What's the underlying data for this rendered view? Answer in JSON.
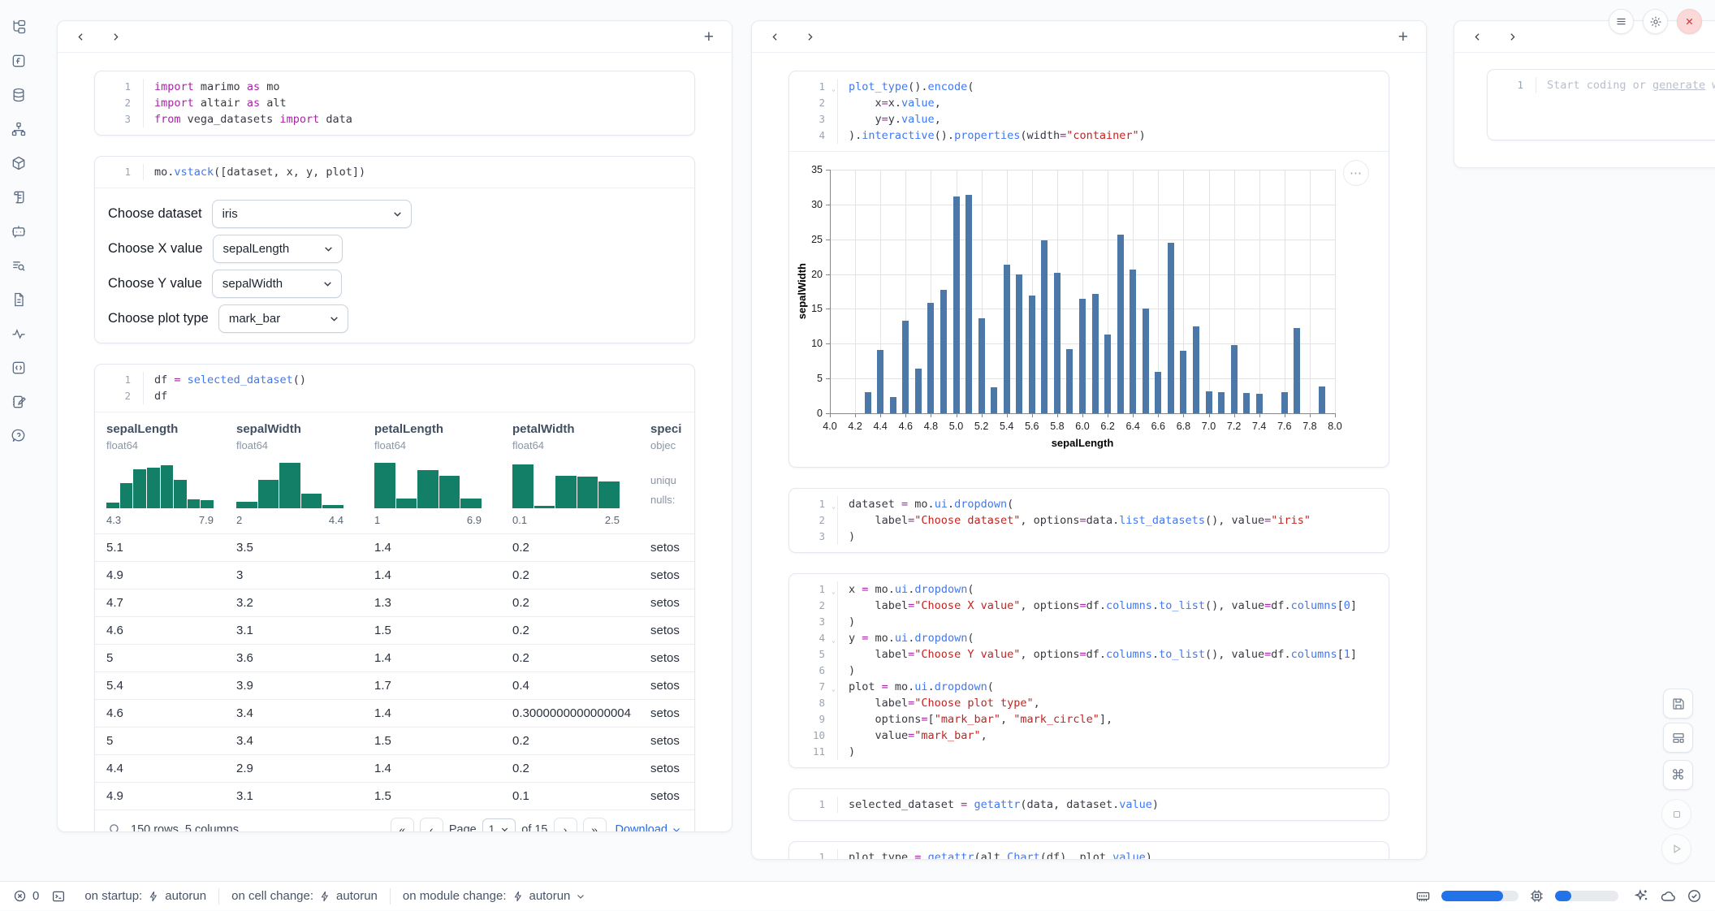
{
  "colors": {
    "bar": "#4c78a8",
    "histogram": "#137f67",
    "progress": "#2272e8",
    "link": "#2b6cde"
  },
  "column_header": {
    "add_label": "+"
  },
  "code_cells": {
    "imports": {
      "lines": [
        {
          "f": 0,
          "s": [
            [
              "k",
              "import"
            ],
            [
              "p",
              " marimo "
            ],
            [
              "k",
              "as"
            ],
            [
              "p",
              " mo"
            ]
          ]
        },
        {
          "f": 0,
          "s": [
            [
              "k",
              "import"
            ],
            [
              "p",
              " altair "
            ],
            [
              "k",
              "as"
            ],
            [
              "p",
              " alt"
            ]
          ]
        },
        {
          "f": 0,
          "s": [
            [
              "k",
              "from"
            ],
            [
              "p",
              " vega_datasets "
            ],
            [
              "k",
              "import"
            ],
            [
              "p",
              " data"
            ]
          ]
        }
      ]
    },
    "vstack": {
      "lines": [
        {
          "f": 0,
          "s": [
            [
              "p",
              "mo."
            ],
            [
              "f",
              "vstack"
            ],
            [
              "p",
              "([dataset, x, y, plot])"
            ]
          ]
        }
      ]
    },
    "df": {
      "lines": [
        {
          "f": 0,
          "s": [
            [
              "p",
              "df "
            ],
            [
              "o",
              "="
            ],
            [
              "p",
              " "
            ],
            [
              "f",
              "selected_dataset"
            ],
            [
              "p",
              "()"
            ]
          ]
        },
        {
          "f": 0,
          "s": [
            [
              "p",
              "df"
            ]
          ]
        }
      ]
    },
    "plot_encode": {
      "lines": [
        {
          "f": 1,
          "s": [
            [
              "f",
              "plot_type"
            ],
            [
              "p",
              "()."
            ],
            [
              "f",
              "encode"
            ],
            [
              "p",
              "("
            ]
          ]
        },
        {
          "f": 0,
          "s": [
            [
              "p",
              "    x"
            ],
            [
              "o",
              "="
            ],
            [
              "p",
              "x."
            ],
            [
              "f",
              "value"
            ],
            [
              "p",
              ","
            ]
          ]
        },
        {
          "f": 0,
          "s": [
            [
              "p",
              "    y"
            ],
            [
              "o",
              "="
            ],
            [
              "p",
              "y."
            ],
            [
              "f",
              "value"
            ],
            [
              "p",
              ","
            ]
          ]
        },
        {
          "f": 0,
          "s": [
            [
              "p",
              ")."
            ],
            [
              "f",
              "interactive"
            ],
            [
              "p",
              "()."
            ],
            [
              "f",
              "properties"
            ],
            [
              "p",
              "(width"
            ],
            [
              "o",
              "="
            ],
            [
              "s",
              "\"container\""
            ],
            [
              "p",
              ")"
            ]
          ]
        }
      ]
    },
    "dataset_dropdown": {
      "lines": [
        {
          "f": 1,
          "s": [
            [
              "p",
              "dataset "
            ],
            [
              "o",
              "="
            ],
            [
              "p",
              " mo."
            ],
            [
              "f",
              "ui"
            ],
            [
              "p",
              "."
            ],
            [
              "f",
              "dropdown"
            ],
            [
              "p",
              "("
            ]
          ]
        },
        {
          "f": 0,
          "s": [
            [
              "p",
              "    label"
            ],
            [
              "o",
              "="
            ],
            [
              "s",
              "\"Choose dataset\""
            ],
            [
              "p",
              ", options"
            ],
            [
              "o",
              "="
            ],
            [
              "p",
              "data."
            ],
            [
              "f",
              "list_datasets"
            ],
            [
              "p",
              "(), value"
            ],
            [
              "o",
              "="
            ],
            [
              "s",
              "\"iris\""
            ]
          ]
        },
        {
          "f": 0,
          "s": [
            [
              "p",
              ")"
            ]
          ]
        }
      ]
    },
    "xy_plot_dropdowns": {
      "lines": [
        {
          "f": 1,
          "s": [
            [
              "p",
              "x "
            ],
            [
              "o",
              "="
            ],
            [
              "p",
              " mo."
            ],
            [
              "f",
              "ui"
            ],
            [
              "p",
              "."
            ],
            [
              "f",
              "dropdown"
            ],
            [
              "p",
              "("
            ]
          ]
        },
        {
          "f": 0,
          "s": [
            [
              "p",
              "    label"
            ],
            [
              "o",
              "="
            ],
            [
              "s",
              "\"Choose X value\""
            ],
            [
              "p",
              ", options"
            ],
            [
              "o",
              "="
            ],
            [
              "p",
              "df."
            ],
            [
              "f",
              "columns"
            ],
            [
              "p",
              "."
            ],
            [
              "f",
              "to_list"
            ],
            [
              "p",
              "(), value"
            ],
            [
              "o",
              "="
            ],
            [
              "p",
              "df."
            ],
            [
              "f",
              "columns"
            ],
            [
              "p",
              "["
            ],
            [
              "n",
              "0"
            ],
            [
              "p",
              "]"
            ]
          ]
        },
        {
          "f": 0,
          "s": [
            [
              "p",
              ")"
            ]
          ]
        },
        {
          "f": 1,
          "s": [
            [
              "p",
              "y "
            ],
            [
              "o",
              "="
            ],
            [
              "p",
              " mo."
            ],
            [
              "f",
              "ui"
            ],
            [
              "p",
              "."
            ],
            [
              "f",
              "dropdown"
            ],
            [
              "p",
              "("
            ]
          ]
        },
        {
          "f": 0,
          "s": [
            [
              "p",
              "    label"
            ],
            [
              "o",
              "="
            ],
            [
              "s",
              "\"Choose Y value\""
            ],
            [
              "p",
              ", options"
            ],
            [
              "o",
              "="
            ],
            [
              "p",
              "df."
            ],
            [
              "f",
              "columns"
            ],
            [
              "p",
              "."
            ],
            [
              "f",
              "to_list"
            ],
            [
              "p",
              "(), value"
            ],
            [
              "o",
              "="
            ],
            [
              "p",
              "df."
            ],
            [
              "f",
              "columns"
            ],
            [
              "p",
              "["
            ],
            [
              "n",
              "1"
            ],
            [
              "p",
              "]"
            ]
          ]
        },
        {
          "f": 0,
          "s": [
            [
              "p",
              ")"
            ]
          ]
        },
        {
          "f": 1,
          "s": [
            [
              "p",
              "plot "
            ],
            [
              "o",
              "="
            ],
            [
              "p",
              " mo."
            ],
            [
              "f",
              "ui"
            ],
            [
              "p",
              "."
            ],
            [
              "f",
              "dropdown"
            ],
            [
              "p",
              "("
            ]
          ]
        },
        {
          "f": 0,
          "s": [
            [
              "p",
              "    label"
            ],
            [
              "o",
              "="
            ],
            [
              "s",
              "\"Choose plot type\""
            ],
            [
              "p",
              ","
            ]
          ]
        },
        {
          "f": 0,
          "s": [
            [
              "p",
              "    options"
            ],
            [
              "o",
              "="
            ],
            [
              "p",
              "["
            ],
            [
              "s",
              "\"mark_bar\""
            ],
            [
              "p",
              ", "
            ],
            [
              "s",
              "\"mark_circle\""
            ],
            [
              "p",
              "],"
            ]
          ]
        },
        {
          "f": 0,
          "s": [
            [
              "p",
              "    value"
            ],
            [
              "o",
              "="
            ],
            [
              "s",
              "\"mark_bar\""
            ],
            [
              "p",
              ","
            ]
          ]
        },
        {
          "f": 0,
          "s": [
            [
              "p",
              ")"
            ]
          ]
        }
      ]
    },
    "selected_dataset": {
      "lines": [
        {
          "f": 0,
          "s": [
            [
              "p",
              "selected_dataset "
            ],
            [
              "o",
              "="
            ],
            [
              "p",
              " "
            ],
            [
              "f",
              "getattr"
            ],
            [
              "p",
              "(data, dataset."
            ],
            [
              "f",
              "value"
            ],
            [
              "p",
              ")"
            ]
          ]
        }
      ]
    },
    "plot_type": {
      "lines": [
        {
          "f": 0,
          "s": [
            [
              "p",
              "plot_type "
            ],
            [
              "o",
              "="
            ],
            [
              "p",
              " "
            ],
            [
              "f",
              "getattr"
            ],
            [
              "p",
              "(alt."
            ],
            [
              "f",
              "Chart"
            ],
            [
              "p",
              "(df), plot."
            ],
            [
              "f",
              "value"
            ],
            [
              "p",
              ")"
            ]
          ]
        }
      ]
    },
    "scratch": {
      "lines": [
        {
          "f": 0,
          "s": [
            [
              "ph",
              "Start coding or "
            ],
            [
              "phu",
              "generate"
            ],
            [
              "ph",
              " with"
            ]
          ]
        }
      ]
    }
  },
  "controls": {
    "rows": [
      {
        "label": "Choose dataset",
        "value": "iris"
      },
      {
        "label": "Choose X value",
        "value": "sepalLength"
      },
      {
        "label": "Choose Y value",
        "value": "sepalWidth"
      },
      {
        "label": "Choose plot type",
        "value": "mark_bar"
      }
    ]
  },
  "table": {
    "columns": [
      {
        "name": "sepalLength",
        "type": "float64",
        "min": "4.3",
        "max": "7.9",
        "hist": [
          0.13,
          0.55,
          0.85,
          0.9,
          0.95,
          0.63,
          0.2,
          0.17
        ]
      },
      {
        "name": "sepalWidth",
        "type": "float64",
        "min": "2",
        "max": "4.4",
        "hist": [
          0.15,
          0.63,
          1.0,
          0.33,
          0.07
        ]
      },
      {
        "name": "petalLength",
        "type": "float64",
        "min": "1",
        "max": "6.9",
        "hist": [
          1.0,
          0.22,
          0.84,
          0.71,
          0.22
        ]
      },
      {
        "name": "petalWidth",
        "type": "float64",
        "min": "0.1",
        "max": "2.5",
        "hist": [
          0.97,
          0.05,
          0.71,
          0.7,
          0.59
        ]
      },
      {
        "name": "speci",
        "type": "objec",
        "meta": [
          "uniqu",
          "nulls:"
        ]
      }
    ],
    "rows": [
      [
        "5.1",
        "3.5",
        "1.4",
        "0.2",
        "setos"
      ],
      [
        "4.9",
        "3",
        "1.4",
        "0.2",
        "setos"
      ],
      [
        "4.7",
        "3.2",
        "1.3",
        "0.2",
        "setos"
      ],
      [
        "4.6",
        "3.1",
        "1.5",
        "0.2",
        "setos"
      ],
      [
        "5",
        "3.6",
        "1.4",
        "0.2",
        "setos"
      ],
      [
        "5.4",
        "3.9",
        "1.7",
        "0.4",
        "setos"
      ],
      [
        "4.6",
        "3.4",
        "1.4",
        "0.3000000000000004",
        "setos"
      ],
      [
        "5",
        "3.4",
        "1.5",
        "0.2",
        "setos"
      ],
      [
        "4.4",
        "2.9",
        "1.4",
        "0.2",
        "setos"
      ],
      [
        "4.9",
        "3.1",
        "1.5",
        "0.1",
        "setos"
      ]
    ],
    "footer": {
      "summary": "150 rows, 5 columns",
      "page_label": "Page",
      "page_value": "1",
      "of_label": "of 15",
      "download_label": "Download"
    }
  },
  "chart_data": {
    "type": "bar",
    "x": [
      4.3,
      4.4,
      4.5,
      4.6,
      4.7,
      4.8,
      4.9,
      5.0,
      5.1,
      5.2,
      5.3,
      5.4,
      5.5,
      5.6,
      5.7,
      5.8,
      5.9,
      6.0,
      6.1,
      6.2,
      6.3,
      6.4,
      6.5,
      6.6,
      6.7,
      6.8,
      6.9,
      7.0,
      7.1,
      7.2,
      7.3,
      7.4,
      7.6,
      7.7,
      7.9
    ],
    "values": [
      3.0,
      9.1,
      2.3,
      13.3,
      6.4,
      15.9,
      17.7,
      31.2,
      31.4,
      13.7,
      3.7,
      21.4,
      20.0,
      16.9,
      24.9,
      20.2,
      9.2,
      16.4,
      17.1,
      11.3,
      25.7,
      20.7,
      15.0,
      6.0,
      24.5,
      9.0,
      12.5,
      3.2,
      3.0,
      9.8,
      2.9,
      2.8,
      3.0,
      12.2,
      3.8
    ],
    "title": "",
    "xlabel": "sepalLength",
    "ylabel": "sepalWidth",
    "xlim": [
      4.0,
      8.0
    ],
    "ylim": [
      0,
      35
    ],
    "x_ticks": [
      "4.0",
      "4.2",
      "4.4",
      "4.6",
      "4.8",
      "5.0",
      "5.2",
      "5.4",
      "5.6",
      "5.8",
      "6.0",
      "6.2",
      "6.4",
      "6.6",
      "6.8",
      "7.0",
      "7.2",
      "7.4",
      "7.6",
      "7.8",
      "8.0"
    ],
    "y_ticks": [
      0,
      5,
      10,
      15,
      20,
      25,
      30,
      35
    ],
    "grid": true,
    "legend": false,
    "bar_color": "#4c78a8"
  },
  "statusbar": {
    "error_count": "0",
    "items": [
      {
        "label": "on startup:",
        "value": "autorun"
      },
      {
        "label": "on cell change:",
        "value": "autorun"
      },
      {
        "label": "on module change:",
        "value": "autorun"
      }
    ],
    "ram_pct": 80,
    "cpu_pct": 25
  }
}
